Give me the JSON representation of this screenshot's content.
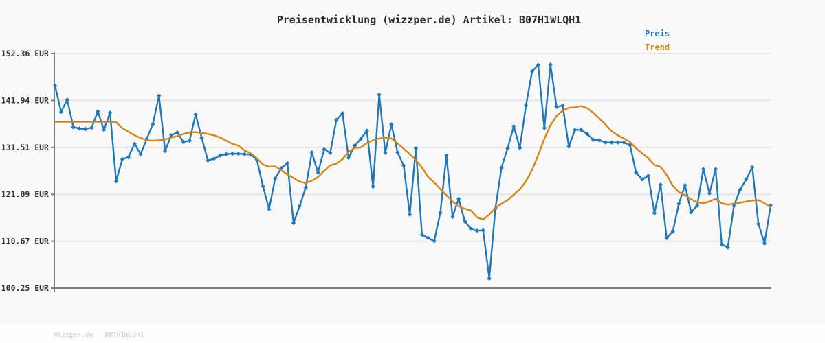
{
  "title": "Preisentwicklung (wizzper.de) Artikel: B07H1WLQH1",
  "footer": "Wizzper.de - B07H1WLQH1",
  "legend": [
    {
      "id": "preis",
      "label": "Preis",
      "color": "#1E78BE"
    },
    {
      "id": "trend",
      "label": "Trend",
      "color": "#DB830F"
    }
  ],
  "colors": {
    "preis": "#1E78BE",
    "trend": "#DB830F",
    "axis": "#7E7E7E",
    "grid": "#E6E6E6",
    "title": "#2E2E2E",
    "tick_label": "#333333",
    "footer_text": "#C9C9C9",
    "background": "#F9F9F9"
  },
  "chart_data": {
    "type": "line",
    "title": "Preisentwicklung (wizzper.de) Artikel: B07H1WLQH1",
    "xlabel": "",
    "ylabel": "",
    "x_tick_labels": [],
    "ylim": [
      100.25,
      152.36
    ],
    "grid": "horizontal",
    "legend_position": "top-right",
    "y_ticks": [
      {
        "label": "152.36 EUR",
        "value": 152.36
      },
      {
        "label": "141.94 EUR",
        "value": 141.94
      },
      {
        "label": "131.51 EUR",
        "value": 131.51
      },
      {
        "label": "121.09 EUR",
        "value": 121.09
      },
      {
        "label": "110.67 EUR",
        "value": 110.67
      },
      {
        "label": "100.25 EUR",
        "value": 100.25
      }
    ],
    "series": [
      {
        "name": "Preis",
        "color": "#1E78BE",
        "marker": "diamond",
        "values": [
          145.2,
          139.4,
          142.1,
          136.0,
          135.7,
          135.6,
          135.9,
          139.5,
          135.4,
          139.2,
          124.0,
          128.9,
          129.3,
          132.3,
          130.0,
          133.4,
          136.7,
          143.0,
          130.7,
          134.2,
          134.8,
          132.7,
          133.0,
          138.8,
          133.6,
          128.6,
          129.0,
          129.7,
          130.0,
          130.1,
          130.1,
          130.0,
          129.9,
          128.8,
          122.9,
          117.8,
          124.6,
          126.9,
          128.0,
          114.7,
          118.5,
          122.6,
          130.4,
          125.9,
          131.1,
          130.3,
          137.6,
          139.1,
          129.2,
          131.9,
          133.4,
          135.2,
          122.8,
          143.2,
          130.3,
          136.6,
          130.4,
          127.5,
          116.6,
          131.3,
          112.1,
          111.4,
          110.7,
          117.0,
          129.7,
          116.1,
          120.1,
          115.1,
          113.4,
          113.0,
          113.1,
          102.4,
          117.9,
          127.0,
          131.3,
          136.2,
          131.4,
          140.8,
          148.4,
          149.8,
          135.8,
          149.9,
          140.5,
          140.8,
          131.7,
          135.4,
          135.4,
          134.5,
          133.2,
          133.1,
          132.6,
          132.6,
          132.6,
          132.6,
          132.0,
          125.9,
          124.4,
          125.2,
          116.9,
          123.2,
          111.4,
          112.8,
          119.0,
          123.1,
          117.1,
          118.6,
          126.7,
          121.3,
          126.7,
          110.0,
          109.3,
          118.5,
          122.1,
          124.4,
          127.1,
          114.5,
          110.2,
          118.6
        ]
      },
      {
        "name": "Trend",
        "color": "#DB830F",
        "marker": "none",
        "values": [
          137.2,
          137.2,
          137.2,
          137.2,
          137.2,
          137.2,
          137.2,
          137.2,
          137.2,
          137.2,
          137.1,
          135.8,
          135.0,
          134.2,
          133.6,
          133.1,
          133.0,
          133.1,
          133.3,
          133.7,
          134.0,
          134.5,
          134.8,
          134.9,
          134.7,
          134.5,
          134.2,
          133.7,
          133.0,
          132.3,
          131.9,
          130.8,
          130.2,
          129.1,
          127.7,
          127.2,
          127.3,
          126.4,
          125.5,
          124.7,
          123.9,
          123.6,
          124.1,
          124.9,
          126.3,
          127.5,
          127.9,
          128.9,
          130.5,
          131.4,
          131.5,
          132.5,
          133.1,
          133.5,
          133.7,
          133.5,
          132.4,
          131.2,
          130.0,
          128.7,
          127.0,
          125.0,
          123.7,
          122.3,
          120.9,
          119.5,
          118.4,
          117.9,
          117.5,
          116.0,
          115.5,
          116.6,
          118.0,
          119.0,
          119.8,
          121.0,
          122.2,
          124.0,
          126.5,
          129.8,
          133.4,
          136.4,
          138.5,
          139.7,
          140.3,
          140.4,
          140.7,
          140.2,
          139.2,
          137.9,
          136.6,
          135.1,
          134.2,
          133.5,
          132.7,
          131.3,
          130.2,
          129.1,
          127.6,
          127.2,
          125.4,
          123.0,
          121.6,
          120.9,
          120.0,
          119.3,
          119.1,
          119.5,
          120.1,
          119.1,
          118.8,
          119.0,
          119.2,
          119.5,
          119.7,
          119.8,
          119.1,
          118.2
        ]
      }
    ]
  }
}
